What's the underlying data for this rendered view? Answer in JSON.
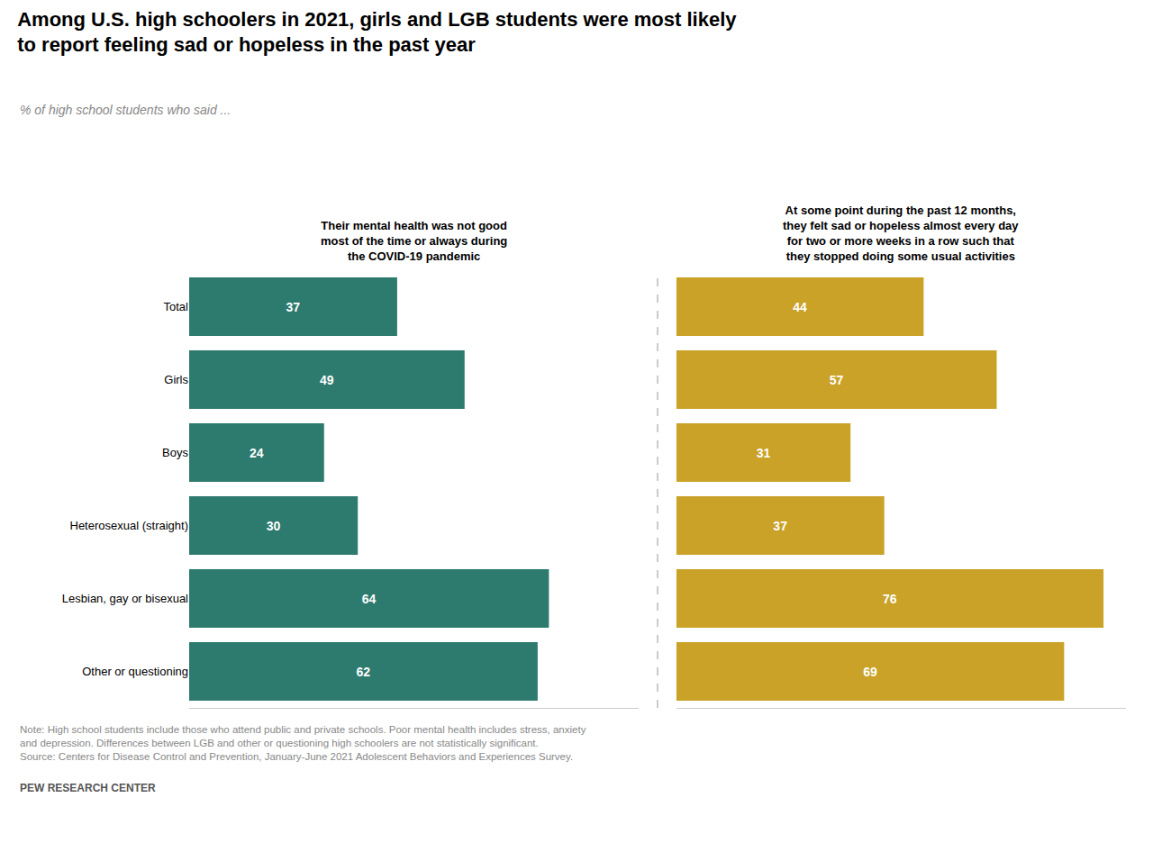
{
  "chart_data": {
    "type": "bar",
    "orientation": "horizontal",
    "title": "Among U.S. high schoolers in 2021, girls and LGB students were most likely\nto report feeling sad or hopeless in the past year",
    "subtitle": "% of high school students who said ...",
    "categories": [
      "Total",
      "Girls",
      "Boys",
      "Heterosexual (straight)",
      "Lesbian, gay or bisexual",
      "Other or questioning"
    ],
    "series": [
      {
        "name": "Their mental health was not good\nmost of the time or always during\nthe COVID-19 pandemic",
        "color": "#2d7a6e",
        "values": [
          37,
          49,
          24,
          30,
          64,
          62
        ]
      },
      {
        "name": "At some point during the past 12 months,\nthey felt sad or hopeless almost every day\nfor two or more weeks in a row such that\nthey stopped doing some usual activities",
        "color": "#c9a227",
        "values": [
          44,
          57,
          31,
          37,
          76,
          69
        ]
      }
    ],
    "xlim": [
      0,
      80
    ],
    "xticks": [],
    "tick_labels": "y",
    "grid": false,
    "data_labels": true,
    "annotations": [
      "Note: High school students include those who attend public and private schools. Poor mental health includes stress, anxiety\nand depression. Differences between LGB and other or questioning high schoolers are not statistically significant.\nSource: Centers for Disease Control and Prevention, January-June 2021 Adolescent Behaviors and Experiences Survey.",
      "PEW RESEARCH CENTER"
    ]
  }
}
